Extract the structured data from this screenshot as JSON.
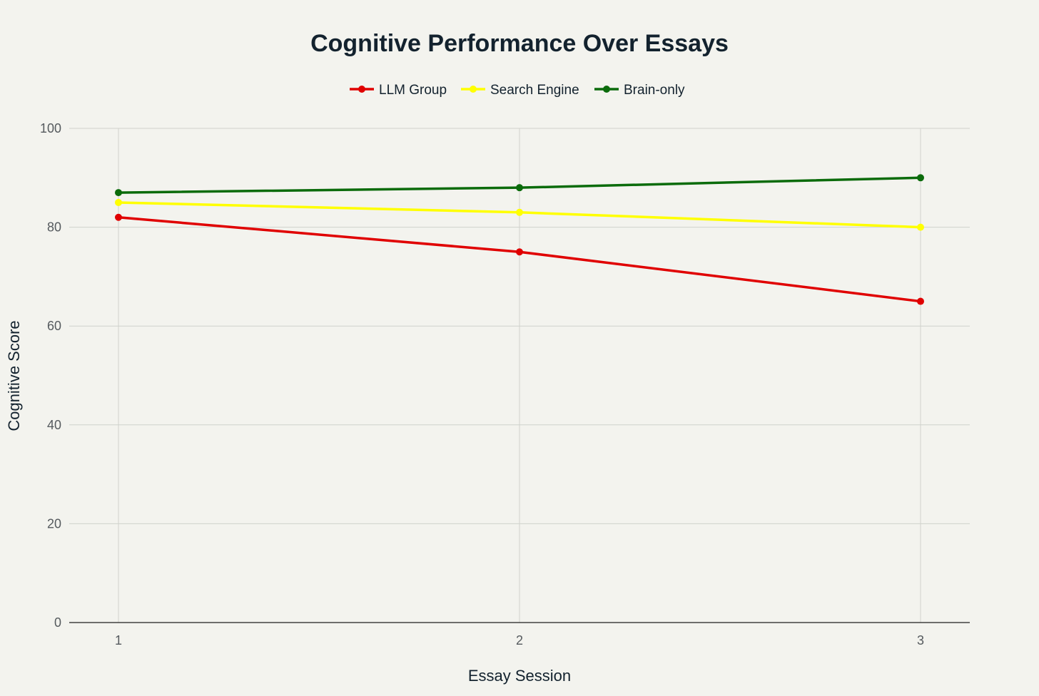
{
  "chart_data": {
    "type": "line",
    "title": "Cognitive Performance Over Essays",
    "xlabel": "Essay Session",
    "ylabel": "Cognitive Score",
    "x": [
      1,
      2,
      3
    ],
    "x_tick_labels": [
      "1",
      "2",
      "3"
    ],
    "ylim": [
      0,
      100
    ],
    "y_ticks": [
      0,
      20,
      40,
      60,
      80,
      100
    ],
    "y_tick_labels": [
      "0",
      "20",
      "40",
      "60",
      "80",
      "100"
    ],
    "grid": true,
    "legend_position": "top-center",
    "series": [
      {
        "name": "LLM Group",
        "color": "#e00000",
        "values": [
          82,
          75,
          65
        ]
      },
      {
        "name": "Search Engine",
        "color": "#ffff00",
        "values": [
          85,
          83,
          80
        ]
      },
      {
        "name": "Brain-only",
        "color": "#0b6b0b",
        "values": [
          87,
          88,
          90
        ]
      }
    ]
  },
  "colors": {
    "background": "#f3f3ee",
    "grid": "#d0d2cc",
    "text": "#13222e",
    "tick_text": "#555a5e"
  }
}
